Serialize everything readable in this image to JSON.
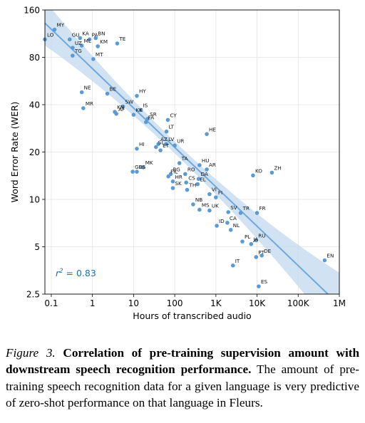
{
  "chart_data": {
    "type": "scatter",
    "xlabel": "Hours of transcribed audio",
    "ylabel": "Word Error Rate (WER)",
    "x_scale": "log",
    "y_scale": "log",
    "xlim": [
      0.07,
      1000000
    ],
    "ylim": [
      2.5,
      160
    ],
    "x_ticks": [
      {
        "value": 0.1,
        "label": "0.1"
      },
      {
        "value": 1,
        "label": "1"
      },
      {
        "value": 10,
        "label": "10"
      },
      {
        "value": 100,
        "label": "100"
      },
      {
        "value": 1000,
        "label": "1K"
      },
      {
        "value": 10000,
        "label": "10K"
      },
      {
        "value": 100000,
        "label": "100K"
      },
      {
        "value": 1000000,
        "label": "1M"
      }
    ],
    "y_ticks": [
      {
        "value": 2.5,
        "label": "2.5"
      },
      {
        "value": 5,
        "label": "5"
      },
      {
        "value": 10,
        "label": "10"
      },
      {
        "value": 20,
        "label": "20"
      },
      {
        "value": 40,
        "label": "40"
      },
      {
        "value": 80,
        "label": "80"
      },
      {
        "value": 160,
        "label": "160"
      }
    ],
    "grid": true,
    "point_color": "#5b9bd5",
    "fit_line_color": "#6fa8dc",
    "band_color": "#c6dbef",
    "annotation_color": "#1f6bb5",
    "fit": {
      "x": [
        0.07,
        1000000
      ],
      "y": [
        132,
        2.13
      ]
    },
    "annotation": {
      "prefix": "r",
      "exponent": "2",
      "text": " = 0.83"
    },
    "points": [
      {
        "label": "MY",
        "x": 0.12,
        "y": 120
      },
      {
        "label": "LO",
        "x": 0.07,
        "y": 104
      },
      {
        "label": "GU",
        "x": 0.28,
        "y": 104
      },
      {
        "label": "KA",
        "x": 0.5,
        "y": 106
      },
      {
        "label": "PA",
        "x": 0.85,
        "y": 104
      },
      {
        "label": "BN",
        "x": 1.2,
        "y": 106
      },
      {
        "label": "ML",
        "x": 0.55,
        "y": 95
      },
      {
        "label": "KM",
        "x": 1.35,
        "y": 94
      },
      {
        "label": "TE",
        "x": 4.0,
        "y": 98
      },
      {
        "label": "UZ",
        "x": 0.33,
        "y": 92
      },
      {
        "label": "TG",
        "x": 0.33,
        "y": 82
      },
      {
        "label": "MT",
        "x": 1.05,
        "y": 78
      },
      {
        "label": "NE",
        "x": 0.55,
        "y": 48
      },
      {
        "label": "BE",
        "x": 2.3,
        "y": 47
      },
      {
        "label": "HY",
        "x": 12,
        "y": 45.5
      },
      {
        "label": "MR",
        "x": 0.6,
        "y": 38
      },
      {
        "label": "SW",
        "x": 5.5,
        "y": 39
      },
      {
        "label": "KN",
        "x": 3.5,
        "y": 36
      },
      {
        "label": "AF",
        "x": 3.8,
        "y": 35
      },
      {
        "label": "IS",
        "x": 15,
        "y": 37
      },
      {
        "label": "KK",
        "x": 10,
        "y": 34.5
      },
      {
        "label": "SR",
        "x": 22,
        "y": 32.5
      },
      {
        "label": "FA",
        "x": 20,
        "y": 31
      },
      {
        "label": "CY",
        "x": 68,
        "y": 32
      },
      {
        "label": "LT",
        "x": 63,
        "y": 27
      },
      {
        "label": "HE",
        "x": 600,
        "y": 26
      },
      {
        "label": "AZ",
        "x": 40,
        "y": 22.5
      },
      {
        "label": "LV",
        "x": 62,
        "y": 22.5
      },
      {
        "label": "UR",
        "x": 100,
        "y": 22
      },
      {
        "label": "SL",
        "x": 35,
        "y": 21.5
      },
      {
        "label": "ET",
        "x": 45,
        "y": 20.5
      },
      {
        "label": "HI",
        "x": 12,
        "y": 21
      },
      {
        "label": "TA",
        "x": 130,
        "y": 17
      },
      {
        "label": "HU",
        "x": 400,
        "y": 16.5
      },
      {
        "label": "AR",
        "x": 600,
        "y": 15.5
      },
      {
        "label": "MK",
        "x": 17,
        "y": 16
      },
      {
        "label": "GL",
        "x": 9.5,
        "y": 15
      },
      {
        "label": "BS",
        "x": 12,
        "y": 15
      },
      {
        "label": "BG",
        "x": 80,
        "y": 14.5
      },
      {
        "label": "RO",
        "x": 180,
        "y": 14.5
      },
      {
        "label": "DA",
        "x": 380,
        "y": 13.5
      },
      {
        "label": "FIL",
        "x": 70,
        "y": 14
      },
      {
        "label": "KO",
        "x": 8000,
        "y": 14.2
      },
      {
        "label": "ZH",
        "x": 23000,
        "y": 14.8
      },
      {
        "label": "HR",
        "x": 90,
        "y": 13
      },
      {
        "label": "CS",
        "x": 190,
        "y": 12.8
      },
      {
        "label": "EL",
        "x": 360,
        "y": 12.5
      },
      {
        "label": "SK",
        "x": 90,
        "y": 11.8
      },
      {
        "label": "TH",
        "x": 200,
        "y": 11.5
      },
      {
        "label": "VI",
        "x": 700,
        "y": 10.8
      },
      {
        "label": "FI",
        "x": 1000,
        "y": 10.3
      },
      {
        "label": "NB",
        "x": 280,
        "y": 9.3
      },
      {
        "label": "MS",
        "x": 400,
        "y": 8.6
      },
      {
        "label": "UK",
        "x": 700,
        "y": 8.5
      },
      {
        "label": "SV",
        "x": 2000,
        "y": 8.3
      },
      {
        "label": "TR",
        "x": 4000,
        "y": 8.2
      },
      {
        "label": "FR",
        "x": 10000,
        "y": 8.2
      },
      {
        "label": "CA",
        "x": 1900,
        "y": 7.1
      },
      {
        "label": "ID",
        "x": 1050,
        "y": 6.8
      },
      {
        "label": "NL",
        "x": 2300,
        "y": 6.4
      },
      {
        "label": "PL",
        "x": 4400,
        "y": 5.4
      },
      {
        "label": "RU",
        "x": 9500,
        "y": 5.5
      },
      {
        "label": "JA",
        "x": 7200,
        "y": 5.2
      },
      {
        "label": "PT",
        "x": 9500,
        "y": 4.3
      },
      {
        "label": "DE",
        "x": 13000,
        "y": 4.4
      },
      {
        "label": "IT",
        "x": 2600,
        "y": 3.8
      },
      {
        "label": "EN",
        "x": 440000,
        "y": 4.1
      },
      {
        "label": "ES",
        "x": 11000,
        "y": 2.8
      }
    ]
  },
  "caption": {
    "prefix": "Figure 3.",
    "bold": "Correlation of pre-training supervision amount with downstream speech recognition performance.",
    "body": "The amount of pre-training speech recognition data for a given language is very predictive of zero-shot performance on that language in Fleurs."
  }
}
